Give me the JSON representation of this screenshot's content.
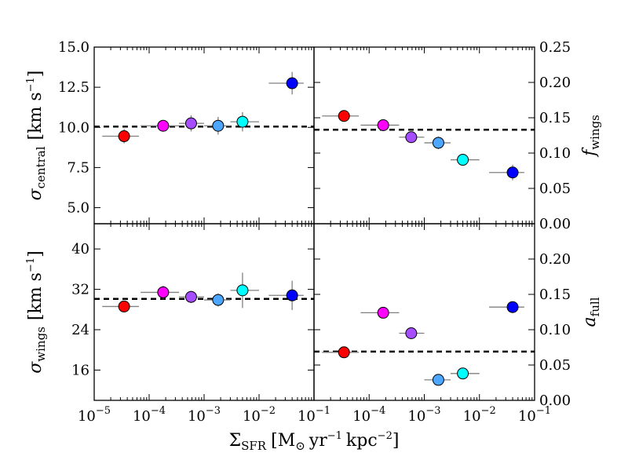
{
  "chart_data": [
    {
      "type": "scatter",
      "panel": "top-left",
      "ylabel": "σcentral [km s−1]",
      "ylabel_parts": {
        "symbol": "σ",
        "sub": "central",
        "unit_pre": "[km s",
        "unit_sup": "−1",
        "unit_post": "]"
      },
      "xscale": "log",
      "xlim": [
        1e-05,
        0.1
      ],
      "ylim": [
        4,
        15
      ],
      "yticks": [
        5.0,
        7.5,
        10.0,
        12.5,
        15.0
      ],
      "ytick_labels": [
        "5.0",
        "7.5",
        "10.0",
        "12.5",
        "15.0"
      ],
      "ytick_side": "left",
      "reference_line": 10.05,
      "points": [
        {
          "x": 3.5e-05,
          "y": 9.45,
          "xlo": 1.4e-05,
          "xhi": 6.5e-05,
          "yerr": 0.45,
          "color": "#ff0000"
        },
        {
          "x": 0.00018,
          "y": 10.1,
          "xlo": 7e-05,
          "xhi": 0.00035,
          "yerr": 0.35,
          "color": "#ff00ff"
        },
        {
          "x": 0.00058,
          "y": 10.25,
          "xlo": 0.00035,
          "xhi": 0.001,
          "yerr": 0.5,
          "color": "#a64dff"
        },
        {
          "x": 0.0018,
          "y": 10.1,
          "xlo": 0.001,
          "xhi": 0.003,
          "yerr": 0.55,
          "color": "#4da6ff"
        },
        {
          "x": 0.005,
          "y": 10.35,
          "xlo": 0.003,
          "xhi": 0.01,
          "yerr": 0.6,
          "color": "#00ffff"
        },
        {
          "x": 0.04,
          "y": 12.75,
          "xlo": 0.015,
          "xhi": 0.065,
          "yerr": 0.7,
          "color": "#0000ff"
        }
      ]
    },
    {
      "type": "scatter",
      "panel": "top-right",
      "ylabel": "fwings",
      "ylabel_parts": {
        "symbol": "f",
        "sub": "wings",
        "unit_pre": "",
        "unit_sup": "",
        "unit_post": ""
      },
      "xscale": "log",
      "xlim": [
        1e-05,
        0.1
      ],
      "ylim": [
        0,
        0.25
      ],
      "yticks": [
        0.0,
        0.05,
        0.1,
        0.15,
        0.2,
        0.25
      ],
      "ytick_labels": [
        "0.00",
        "0.05",
        "0.10",
        "0.15",
        "0.20",
        "0.25"
      ],
      "ytick_side": "right",
      "reference_line": 0.133,
      "points": [
        {
          "x": 3.5e-05,
          "y": 0.1525,
          "xlo": 1.4e-05,
          "xhi": 6.5e-05,
          "yerr": 0.004,
          "color": "#ff0000"
        },
        {
          "x": 0.00018,
          "y": 0.1395,
          "xlo": 7e-05,
          "xhi": 0.00035,
          "yerr": 0.005,
          "color": "#ff00ff"
        },
        {
          "x": 0.00058,
          "y": 0.1225,
          "xlo": 0.00035,
          "xhi": 0.001,
          "yerr": 0.006,
          "color": "#a64dff"
        },
        {
          "x": 0.0018,
          "y": 0.1145,
          "xlo": 0.001,
          "xhi": 0.003,
          "yerr": 0.009,
          "color": "#4da6ff"
        },
        {
          "x": 0.005,
          "y": 0.0905,
          "xlo": 0.003,
          "xhi": 0.01,
          "yerr": 0.007,
          "color": "#00ffff"
        },
        {
          "x": 0.04,
          "y": 0.0725,
          "xlo": 0.015,
          "xhi": 0.065,
          "yerr": 0.011,
          "color": "#0000ff"
        }
      ]
    },
    {
      "type": "scatter",
      "panel": "bottom-left",
      "ylabel": "σwings [km s−1]",
      "ylabel_parts": {
        "symbol": "σ",
        "sub": "wings",
        "unit_pre": "[km s",
        "unit_sup": "−1",
        "unit_post": "]"
      },
      "xscale": "log",
      "xlim": [
        1e-05,
        0.1
      ],
      "ylim": [
        10,
        45
      ],
      "yticks": [
        16,
        24,
        32,
        40
      ],
      "ytick_labels": [
        "16",
        "24",
        "32",
        "40"
      ],
      "ytick_side": "left",
      "reference_line": 30.1,
      "points": [
        {
          "x": 3.5e-05,
          "y": 28.6,
          "xlo": 1.4e-05,
          "xhi": 6.5e-05,
          "yerr": 0.6,
          "color": "#ff0000"
        },
        {
          "x": 0.00018,
          "y": 31.4,
          "xlo": 7e-05,
          "xhi": 0.00035,
          "yerr": 1.3,
          "color": "#ff00ff"
        },
        {
          "x": 0.00058,
          "y": 30.5,
          "xlo": 0.00035,
          "xhi": 0.001,
          "yerr": 1.2,
          "color": "#a64dff"
        },
        {
          "x": 0.0018,
          "y": 29.9,
          "xlo": 0.001,
          "xhi": 0.003,
          "yerr": 1.3,
          "color": "#4da6ff"
        },
        {
          "x": 0.005,
          "y": 31.8,
          "xlo": 0.003,
          "xhi": 0.01,
          "yerr": 3.5,
          "color": "#00ffff"
        },
        {
          "x": 0.04,
          "y": 30.8,
          "xlo": 0.015,
          "xhi": 0.065,
          "yerr": 2.9,
          "color": "#0000ff"
        }
      ]
    },
    {
      "type": "scatter",
      "panel": "bottom-right",
      "ylabel": "afull",
      "ylabel_parts": {
        "symbol": "a",
        "sub": "full",
        "unit_pre": "",
        "unit_sup": "",
        "unit_post": ""
      },
      "xscale": "log",
      "xlim": [
        1e-05,
        0.1
      ],
      "ylim": [
        0,
        0.25
      ],
      "yticks": [
        0.0,
        0.05,
        0.1,
        0.15,
        0.2
      ],
      "ytick_labels": [
        "0.00",
        "0.05",
        "0.10",
        "0.15",
        "0.20"
      ],
      "ytick_side": "right",
      "reference_line": 0.069,
      "points": [
        {
          "x": 3.5e-05,
          "y": 0.068,
          "xlo": 1.4e-05,
          "xhi": 6.5e-05,
          "yerr": 0.0,
          "color": "#ff0000"
        },
        {
          "x": 0.00018,
          "y": 0.124,
          "xlo": 7e-05,
          "xhi": 0.00035,
          "yerr": 0.0,
          "color": "#ff00ff"
        },
        {
          "x": 0.00058,
          "y": 0.095,
          "xlo": 0.00035,
          "xhi": 0.001,
          "yerr": 0.0,
          "color": "#a64dff"
        },
        {
          "x": 0.0018,
          "y": 0.029,
          "xlo": 0.001,
          "xhi": 0.003,
          "yerr": 0.0,
          "color": "#4da6ff"
        },
        {
          "x": 0.005,
          "y": 0.038,
          "xlo": 0.003,
          "xhi": 0.01,
          "yerr": 0.0,
          "color": "#00ffff"
        },
        {
          "x": 0.04,
          "y": 0.132,
          "xlo": 0.015,
          "xhi": 0.065,
          "yerr": 0.0,
          "color": "#0000ff"
        }
      ]
    }
  ],
  "xlabel": "ΣSFR [M⊙ yr−1 kpc−2]",
  "xlabel_parts": {
    "symbol": "Σ",
    "sub": "SFR",
    "pre": "[M",
    "sun_sub": "⊙",
    "mid": "yr",
    "sup1": "−1",
    "mid2": "kpc",
    "sup2": "−2",
    "post": "]"
  },
  "xtick_labels_left": [
    {
      "base": "10",
      "exp": "−5"
    },
    {
      "base": "10",
      "exp": "−4"
    },
    {
      "base": "10",
      "exp": "−3"
    },
    {
      "base": "10",
      "exp": "−2"
    },
    {
      "base": "10",
      "exp": "−1"
    }
  ],
  "xtick_labels_right": [
    {
      "base": "10",
      "exp": "−4"
    },
    {
      "base": "10",
      "exp": "−3"
    },
    {
      "base": "10",
      "exp": "−2"
    },
    {
      "base": "10",
      "exp": "−1"
    }
  ],
  "xtick_values_left": [
    1e-05,
    0.0001,
    0.001,
    0.01,
    0.1
  ],
  "xtick_values_right": [
    0.0001,
    0.001,
    0.01,
    0.1
  ],
  "colors": {
    "axis": "#000000",
    "errorbar": "#808080",
    "reference": "#000000"
  }
}
